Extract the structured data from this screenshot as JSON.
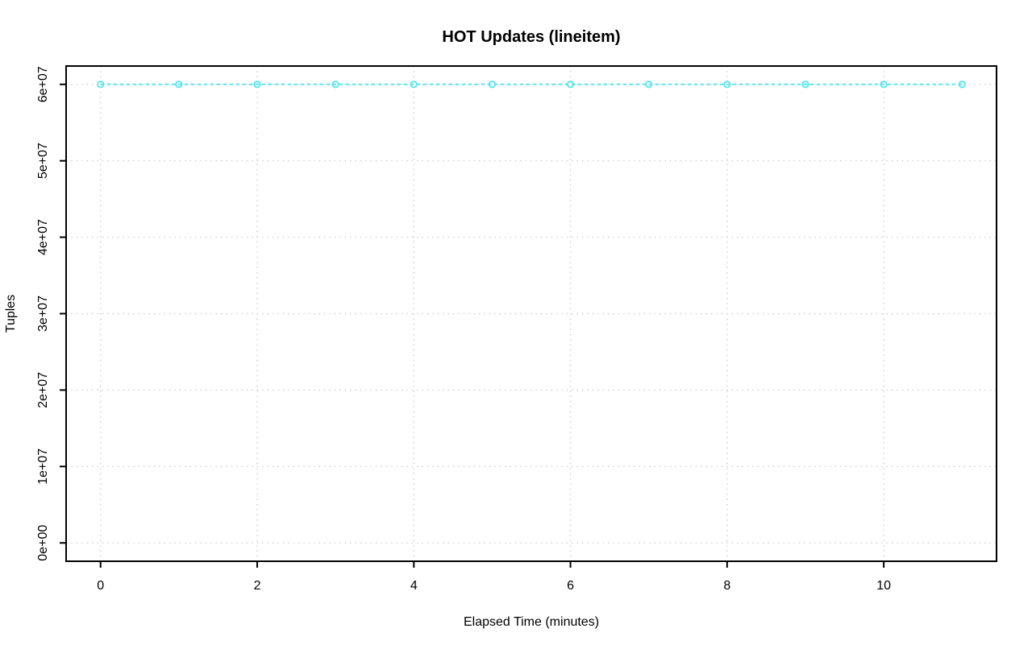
{
  "chart_data": {
    "type": "line",
    "title": "HOT Updates (lineitem)",
    "xlabel": "Elapsed Time (minutes)",
    "ylabel": "Tuples",
    "x": [
      0,
      1,
      2,
      3,
      4,
      5,
      6,
      7,
      8,
      9,
      10,
      11
    ],
    "values": [
      60000000,
      60000000,
      60000000,
      60000000,
      60000000,
      60000000,
      60000000,
      60000000,
      60000000,
      60000000,
      60000000,
      60000000
    ],
    "xlim": [
      -0.44,
      11.44
    ],
    "ylim": [
      -2400000,
      62400000
    ],
    "x_ticks": [
      0,
      2,
      4,
      6,
      8,
      10
    ],
    "x_tick_labels": [
      "0",
      "2",
      "4",
      "6",
      "8",
      "10"
    ],
    "y_ticks": [
      0,
      10000000,
      20000000,
      30000000,
      40000000,
      50000000,
      60000000
    ],
    "y_tick_labels": [
      "0e+00",
      "1e+07",
      "2e+07",
      "3e+07",
      "4e+07",
      "5e+07",
      "6e+07"
    ],
    "grid": "dotted",
    "legend": "none",
    "line_style": "dashed",
    "marker": "open-circle",
    "colors": {
      "series": "#5ce6ee",
      "grid": "#cccccc",
      "axis": "#000000",
      "background": "#ffffff"
    }
  }
}
